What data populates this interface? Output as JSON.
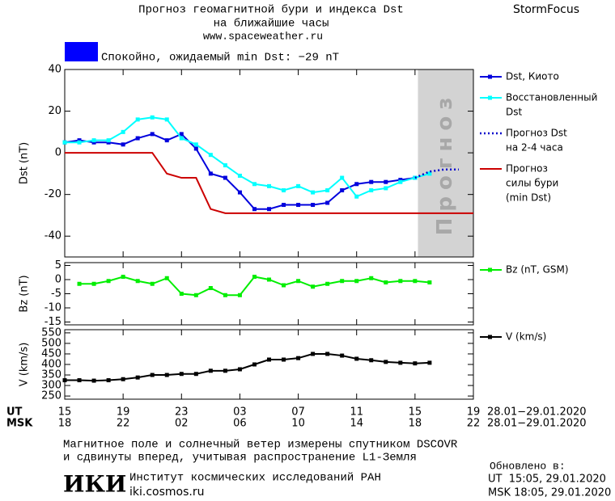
{
  "header": {
    "title_lines": [
      "Прогноз геомагнитной бури и индекса Dst",
      "на ближайшие часы"
    ],
    "site": "www.spaceweather.ru",
    "brand": "StormFocus",
    "status": "Спокойно, ожидаемый min Dst: −29 nT",
    "status_color": "#0000ff"
  },
  "chart_data": [
    {
      "type": "line",
      "ylabel": "Dst (nT)",
      "xlim": [
        0,
        28
      ],
      "xticks": [
        0,
        4,
        8,
        12,
        16,
        20,
        24,
        28
      ],
      "ylim": [
        -50,
        40
      ],
      "yticks": [
        40,
        20,
        0,
        -20,
        -40
      ],
      "shaded_x": [
        24.2,
        28
      ],
      "shaded_label": "Прогноз",
      "series": [
        {
          "name": [
            "Dst, Киото"
          ],
          "color": "#0000dd",
          "marker": true,
          "x": [
            0,
            1,
            2,
            3,
            4,
            5,
            6,
            7,
            8,
            9,
            10,
            11,
            12,
            13,
            14,
            15,
            16,
            17,
            18,
            19,
            20,
            21,
            22,
            23,
            24
          ],
          "values": [
            5,
            6,
            5,
            5,
            4,
            7,
            9,
            6,
            9,
            2,
            -10,
            -12,
            -19,
            -27,
            -27,
            -25,
            -25,
            -25,
            -24,
            -18,
            -15,
            -14,
            -14,
            -13,
            -12
          ]
        },
        {
          "name": [
            "Восстановленный",
            "Dst"
          ],
          "color": "#00ffff",
          "marker": true,
          "x": [
            0,
            1,
            2,
            3,
            4,
            5,
            6,
            7,
            8,
            9,
            10,
            11,
            12,
            13,
            14,
            15,
            16,
            17,
            18,
            19,
            20,
            21,
            22,
            23,
            24,
            25
          ],
          "values": [
            5,
            5,
            6,
            6,
            10,
            16,
            17,
            16,
            7,
            4,
            -1,
            -6,
            -11,
            -15,
            -16,
            -18,
            -16,
            -19,
            -18,
            -12,
            -21,
            -18,
            -17,
            -14,
            -12,
            -10
          ]
        },
        {
          "name": [
            "Прогноз Dst",
            "на 2-4 часа"
          ],
          "color": "#0000cc",
          "marker": false,
          "dash": "2,3",
          "x": [
            24,
            25,
            26,
            27
          ],
          "values": [
            -12,
            -9,
            -8,
            -8
          ]
        },
        {
          "name": [
            "Прогноз",
            "силы бури",
            "(min Dst)"
          ],
          "color": "#cc0000",
          "marker": false,
          "x": [
            0,
            6,
            7,
            8,
            9,
            10,
            11,
            28
          ],
          "values": [
            0,
            0,
            -10,
            -12,
            -12,
            -27,
            -29,
            -29
          ]
        }
      ]
    },
    {
      "type": "line",
      "ylabel": "Bz (nT)",
      "xlim": [
        0,
        28
      ],
      "xticks": [
        0,
        4,
        8,
        12,
        16,
        20,
        24,
        28
      ],
      "ylim": [
        -16,
        6
      ],
      "yticks": [
        5,
        0,
        -5,
        -10,
        -15
      ],
      "series": [
        {
          "name": [
            "Bz (nT, GSM)"
          ],
          "color": "#00ee00",
          "marker": true,
          "x": [
            1,
            2,
            3,
            4,
            5,
            6,
            7,
            8,
            9,
            10,
            11,
            12,
            13,
            14,
            15,
            16,
            17,
            18,
            19,
            20,
            21,
            22,
            23,
            24,
            25
          ],
          "values": [
            -1.5,
            -1.5,
            -0.5,
            1,
            -0.5,
            -1.5,
            0.5,
            -5,
            -5.5,
            -3,
            -5.5,
            -5.5,
            1,
            0,
            -2,
            -0.5,
            -2.5,
            -1.5,
            -0.5,
            -0.5,
            0.5,
            -1,
            -0.5,
            -0.5,
            -1
          ]
        }
      ]
    },
    {
      "type": "line",
      "ylabel": "V (km/s)",
      "xlim": [
        0,
        28
      ],
      "ylim": [
        235,
        565
      ],
      "yticks": [
        550,
        500,
        450,
        400,
        350,
        300,
        250
      ],
      "xticks": [
        {
          "value": 0,
          "label": "15"
        },
        {
          "value": 4,
          "label": "19"
        },
        {
          "value": 8,
          "label": "23"
        },
        {
          "value": 12,
          "label": "03"
        },
        {
          "value": 16,
          "label": "07"
        },
        {
          "value": 20,
          "label": "11"
        },
        {
          "value": 24,
          "label": "15"
        },
        {
          "value": 28,
          "label": "19"
        }
      ],
      "xticks2": [
        "18",
        "22",
        "02",
        "06",
        "10",
        "14",
        "18",
        "22"
      ],
      "xaxis_names": [
        "UT",
        "MSK"
      ],
      "date_ranges": [
        "28.01−29.01.2020",
        "28.01−29.01.2020"
      ],
      "series": [
        {
          "name": [
            "V (km/s)"
          ],
          "color": "#000000",
          "marker": true,
          "x": [
            0,
            1,
            2,
            3,
            4,
            5,
            6,
            7,
            8,
            9,
            10,
            11,
            12,
            13,
            14,
            15,
            16,
            17,
            18,
            19,
            20,
            21,
            22,
            23,
            24,
            25
          ],
          "values": [
            325,
            325,
            323,
            325,
            330,
            338,
            350,
            350,
            355,
            355,
            370,
            370,
            377,
            400,
            423,
            423,
            430,
            450,
            450,
            442,
            427,
            420,
            412,
            408,
            405,
            408
          ]
        }
      ]
    }
  ],
  "footer": {
    "note_lines": [
      "Магнитное поле и солнечный ветер измерены спутником DSCOVR",
      "и сдвинуты вперед, учитывая распространение L1-Земля"
    ],
    "logo": "ИКИ",
    "institute": "Институт космических исследований РАН",
    "institute_site": "iki.cosmos.ru",
    "updated_title": "Обновлено в:",
    "updated_lines": [
      "UT  15:05, 29.01.2020",
      "MSK 18:05, 29.01.2020"
    ]
  }
}
